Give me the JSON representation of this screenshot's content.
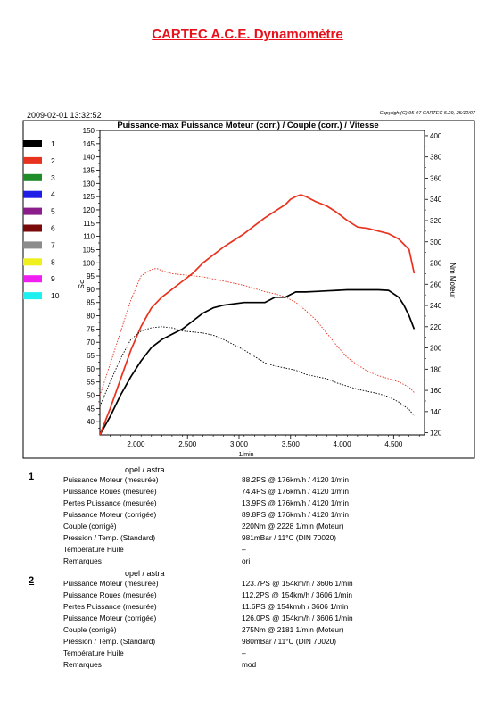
{
  "header": {
    "title": "CARTEC A.C.E. Dynamomètre",
    "datetime": "2009-02-01 13:32:52",
    "copyright": "Copyright(C) 95-07 CARTEC 5.29, 25/12/07"
  },
  "chart_data": {
    "type": "line",
    "title": "Puissance-max Puissance Moteur (corr.) / Couple (corr.) / Vitesse",
    "xlabel": "1/min",
    "ylabel_left": "PS",
    "ylabel_right": "Nm Moteur",
    "xlim": [
      1650,
      4800
    ],
    "ylim_left": [
      35,
      150
    ],
    "ylim_right": [
      118,
      405
    ],
    "x_ticks": [
      2000,
      2500,
      3000,
      3500,
      4000,
      4500
    ],
    "x_tick_labels": [
      "2,000",
      "2,500",
      "3,000",
      "3,500",
      "4,000",
      "4,500"
    ],
    "y_left_ticks": [
      40,
      45,
      50,
      55,
      60,
      65,
      70,
      75,
      80,
      85,
      90,
      95,
      100,
      105,
      110,
      115,
      120,
      125,
      130,
      135,
      140,
      145,
      150
    ],
    "y_right_ticks": [
      120,
      140,
      160,
      180,
      200,
      220,
      240,
      260,
      280,
      300,
      320,
      340,
      360,
      380,
      400
    ],
    "grid": false,
    "legend": [
      {
        "label": "1",
        "color": "#000000"
      },
      {
        "label": "2",
        "color": "#e8321e"
      },
      {
        "label": "3",
        "color": "#1e8c28"
      },
      {
        "label": "4",
        "color": "#1e1ee6"
      },
      {
        "label": "5",
        "color": "#8c1e8c"
      },
      {
        "label": "6",
        "color": "#7a0a0a"
      },
      {
        "label": "7",
        "color": "#8c8c8c"
      },
      {
        "label": "8",
        "color": "#f0f01e"
      },
      {
        "label": "9",
        "color": "#f01ef0"
      },
      {
        "label": "10",
        "color": "#1ef0f0"
      }
    ],
    "series": [
      {
        "run": "1",
        "kind": "power",
        "axis": "left",
        "color": "#000000",
        "x": [
          1650,
          1750,
          1850,
          1950,
          2050,
          2150,
          2250,
          2350,
          2450,
          2550,
          2650,
          2750,
          2850,
          2950,
          3050,
          3150,
          3250,
          3300,
          3350,
          3450,
          3500,
          3550,
          3650,
          3750,
          3850,
          3950,
          4050,
          4150,
          4250,
          4350,
          4450,
          4550,
          4600,
          4650,
          4700
        ],
        "y": [
          35,
          42,
          50,
          57,
          63,
          68,
          71,
          73,
          75,
          78,
          81,
          83,
          84,
          84.5,
          85,
          85,
          85,
          86,
          87,
          87,
          88,
          89,
          89,
          89.2,
          89.4,
          89.6,
          89.8,
          89.8,
          89.8,
          89.8,
          89.6,
          87,
          84,
          80,
          75
        ]
      },
      {
        "run": "2",
        "kind": "power",
        "axis": "left",
        "color": "#e8321e",
        "x": [
          1650,
          1750,
          1850,
          1950,
          2050,
          2150,
          2250,
          2350,
          2450,
          2550,
          2650,
          2750,
          2850,
          2950,
          3050,
          3150,
          3250,
          3350,
          3450,
          3500,
          3550,
          3600,
          3650,
          3750,
          3850,
          3950,
          4050,
          4150,
          4250,
          4350,
          4450,
          4550,
          4650,
          4700
        ],
        "y": [
          35,
          45,
          56,
          67,
          76,
          83,
          87,
          90,
          93,
          96,
          100,
          103,
          106,
          108.5,
          111,
          114,
          117,
          119.5,
          122,
          124,
          125,
          125.7,
          125,
          123,
          121.5,
          119,
          116,
          113.5,
          113,
          112,
          111,
          109,
          105,
          96
        ]
      },
      {
        "run": "1",
        "kind": "torque",
        "axis": "right",
        "color": "#000000",
        "dashed": true,
        "x": [
          1650,
          1750,
          1850,
          1950,
          2050,
          2150,
          2250,
          2350,
          2450,
          2550,
          2650,
          2750,
          2850,
          2950,
          3050,
          3150,
          3250,
          3350,
          3450,
          3550,
          3650,
          3750,
          3850,
          3950,
          4050,
          4150,
          4250,
          4350,
          4450,
          4550,
          4650,
          4700
        ],
        "y": [
          145,
          168,
          190,
          208,
          216,
          219,
          220,
          219,
          216,
          215,
          214,
          212,
          208,
          203,
          198,
          192,
          186,
          183,
          181,
          179,
          175,
          173,
          171,
          167,
          164,
          161,
          159,
          157,
          154,
          149,
          142,
          136
        ]
      },
      {
        "run": "2",
        "kind": "torque",
        "axis": "right",
        "color": "#e8321e",
        "dashed": true,
        "x": [
          1650,
          1750,
          1850,
          1950,
          2050,
          2150,
          2200,
          2250,
          2350,
          2450,
          2550,
          2650,
          2750,
          2850,
          2950,
          3050,
          3150,
          3250,
          3350,
          3450,
          3550,
          3650,
          3750,
          3850,
          3950,
          4050,
          4150,
          4250,
          4350,
          4450,
          4550,
          4650,
          4700
        ],
        "y": [
          155,
          185,
          215,
          245,
          268,
          274,
          275,
          273,
          270,
          269,
          268,
          267,
          265,
          263,
          261,
          259,
          256,
          253,
          251,
          248,
          243,
          235,
          226,
          214,
          202,
          191,
          184,
          178,
          174,
          171,
          168,
          163,
          158
        ]
      }
    ]
  },
  "runs": [
    {
      "number": "1",
      "vehicle": "opel / astra",
      "rows": [
        {
          "label": "Puissance Moteur (mesurée)",
          "value": "88.2PS @ 176km/h / 4120 1/min"
        },
        {
          "label": "Puissance Roues (mesurée)",
          "value": "74.4PS @ 176km/h / 4120 1/min"
        },
        {
          "label": "Pertes Puissance (mesurée)",
          "value": "13.9PS @ 176km/h / 4120 1/min"
        },
        {
          "label": "Puissance Moteur (corrigée)",
          "value": "89.8PS @ 176km/h / 4120 1/min"
        },
        {
          "label": "Couple (corrigé)",
          "value": "220Nm @ 2228 1/min (Moteur)"
        },
        {
          "label": "Pression / Temp. (Standard)",
          "value": "981mBar / 11°C    (DIN 70020)"
        },
        {
          "label": "Température Huile",
          "value": "–"
        },
        {
          "label": "Remarques",
          "value": "ori"
        }
      ]
    },
    {
      "number": "2",
      "vehicle": "opel / astra",
      "rows": [
        {
          "label": "Puissance Moteur (mesurée)",
          "value": "123.7PS @ 154km/h / 3606 1/min"
        },
        {
          "label": "Puissance Roues (mesurée)",
          "value": "112.2PS @ 154km/h / 3606 1/min"
        },
        {
          "label": "Pertes Puissance (mesurée)",
          "value": "11.6PS @ 154km/h / 3606 1/min"
        },
        {
          "label": "Puissance Moteur (corrigée)",
          "value": "126.0PS @ 154km/h / 3606 1/min"
        },
        {
          "label": "Couple (corrigé)",
          "value": "275Nm @ 2181 1/min (Moteur)"
        },
        {
          "label": "Pression / Temp. (Standard)",
          "value": "980mBar / 11°C    (DIN 70020)"
        },
        {
          "label": "Température Huile",
          "value": "–"
        },
        {
          "label": "Remarques",
          "value": "mod"
        }
      ]
    }
  ]
}
